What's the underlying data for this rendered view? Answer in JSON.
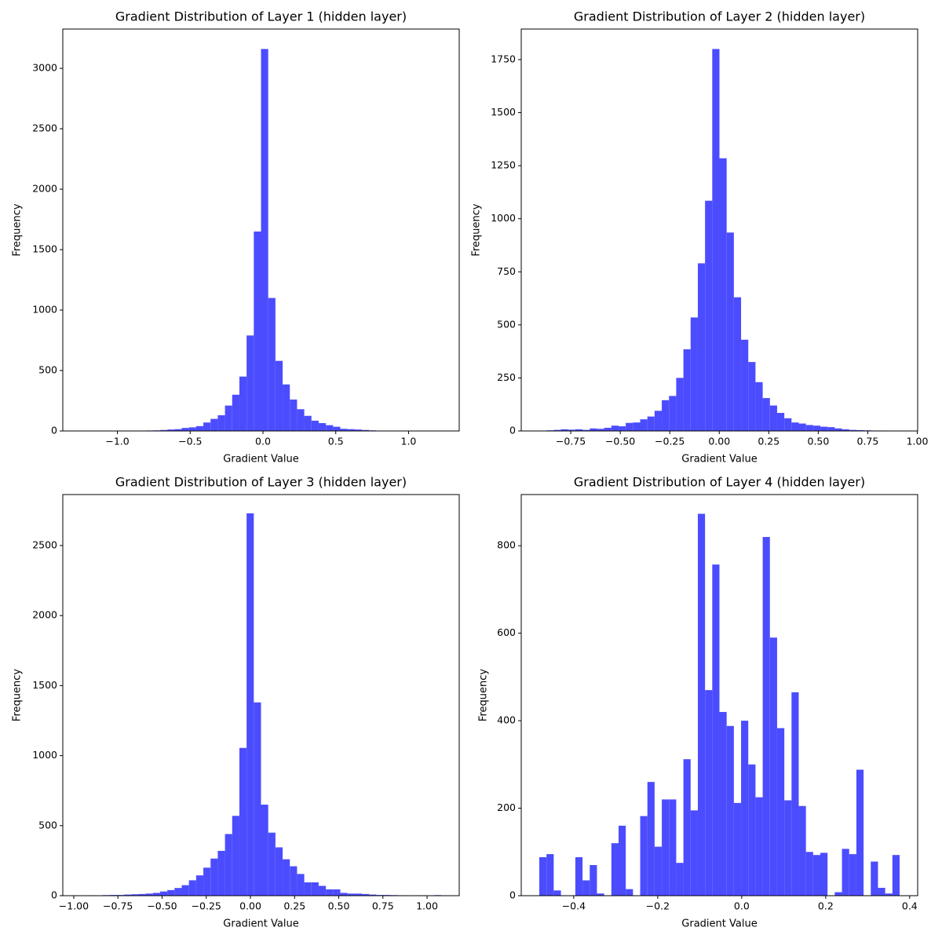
{
  "chart_data": [
    {
      "type": "histogram",
      "title": "Gradient Distribution of Layer 1 (hidden layer)",
      "xlabel": "Gradient Value",
      "ylabel": "Frequency",
      "color": "#4c4cff",
      "bins": [
        -1.251,
        -1.2015,
        -1.152,
        -1.1025,
        -1.053,
        -1.0035,
        -0.954,
        -0.9045,
        -0.855,
        -0.8055,
        -0.756,
        -0.7065,
        -0.657,
        -0.6075,
        -0.558,
        -0.5085,
        -0.459,
        -0.4095,
        -0.36,
        -0.3105,
        -0.261,
        -0.2115,
        -0.162,
        -0.1125,
        -0.063,
        -0.0135,
        0.036,
        0.0855,
        0.135,
        0.1845,
        0.234,
        0.2835,
        0.333,
        0.3825,
        0.432,
        0.4815,
        0.531,
        0.5805,
        0.63,
        0.6795,
        0.729,
        0.7785,
        0.828,
        0.8775,
        0.927,
        0.9765,
        1.026,
        1.0755,
        1.125,
        1.1745,
        1.224
      ],
      "values": [
        1,
        0,
        0,
        0,
        0,
        0,
        0,
        1,
        2,
        4,
        5,
        8,
        12,
        15,
        25,
        30,
        40,
        70,
        100,
        130,
        210,
        300,
        450,
        790,
        1650,
        3160,
        1100,
        580,
        385,
        260,
        180,
        125,
        85,
        65,
        48,
        35,
        18,
        15,
        12,
        8,
        5,
        3,
        1,
        1,
        0,
        0,
        0,
        0,
        0,
        1
      ],
      "xlim": [
        -1.375,
        1.348
      ],
      "ylim": [
        0,
        3325
      ],
      "xticks": [
        {
          "value": -1.0,
          "label": "−1.0"
        },
        {
          "value": -0.5,
          "label": "−0.5"
        },
        {
          "value": 0,
          "label": "0.0"
        },
        {
          "value": 0.5,
          "label": "0.5"
        },
        {
          "value": 1.0,
          "label": "1.0"
        }
      ],
      "yticks": [
        0,
        500,
        1000,
        1500,
        2000,
        2500,
        3000
      ]
    },
    {
      "type": "histogram",
      "title": "Gradient Distribution of Layer 2 (hidden layer)",
      "xlabel": "Gradient Value",
      "ylabel": "Frequency",
      "color": "#4c4cff",
      "bins": [
        -0.909,
        -0.8726,
        -0.8362,
        -0.7998,
        -0.7634,
        -0.727,
        -0.6906,
        -0.6542,
        -0.6178,
        -0.5814,
        -0.545,
        -0.5086,
        -0.4722,
        -0.4358,
        -0.3994,
        -0.363,
        -0.3266,
        -0.2902,
        -0.2538,
        -0.2174,
        -0.181,
        -0.1446,
        -0.1082,
        -0.0718,
        -0.0354,
        0.001,
        0.0374,
        0.0738,
        0.1102,
        0.1466,
        0.183,
        0.2194,
        0.2558,
        0.2922,
        0.3286,
        0.365,
        0.4014,
        0.4378,
        0.4742,
        0.5106,
        0.547,
        0.5834,
        0.6198,
        0.6562,
        0.6926,
        0.729,
        0.7654,
        0.8018,
        0.8382,
        0.8746,
        0.911
      ],
      "values": [
        1,
        3,
        5,
        8,
        6,
        8,
        5,
        12,
        10,
        15,
        25,
        22,
        38,
        40,
        55,
        68,
        95,
        145,
        165,
        250,
        385,
        535,
        790,
        1085,
        1800,
        1285,
        935,
        630,
        430,
        325,
        230,
        155,
        120,
        85,
        60,
        40,
        35,
        28,
        25,
        20,
        18,
        12,
        8,
        5,
        4,
        3,
        2,
        2,
        1,
        1
      ],
      "xlim": [
        -1.0,
        1.002
      ],
      "ylim": [
        0,
        1894
      ],
      "xticks": [
        {
          "value": -0.75,
          "label": "−0.75"
        },
        {
          "value": -0.5,
          "label": "−0.50"
        },
        {
          "value": -0.25,
          "label": "−0.25"
        },
        {
          "value": 0,
          "label": "0.00"
        },
        {
          "value": 0.25,
          "label": "0.25"
        },
        {
          "value": 0.5,
          "label": "0.50"
        },
        {
          "value": 0.75,
          "label": "0.75"
        },
        {
          "value": 1.0,
          "label": "1.00"
        }
      ],
      "yticks": [
        0,
        250,
        500,
        750,
        1000,
        1250,
        1500,
        1750
      ]
    },
    {
      "type": "histogram",
      "title": "Gradient Distribution of Layer 3 (hidden layer)",
      "xlabel": "Gradient Value",
      "ylabel": "Frequency",
      "color": "#4c4cff",
      "bins": [
        -0.96,
        -0.9192,
        -0.8784,
        -0.8376,
        -0.7968,
        -0.756,
        -0.7152,
        -0.6744,
        -0.6336,
        -0.5928,
        -0.552,
        -0.5112,
        -0.4704,
        -0.4296,
        -0.3888,
        -0.348,
        -0.3072,
        -0.2664,
        -0.2256,
        -0.1848,
        -0.144,
        -0.1032,
        -0.0624,
        -0.0216,
        0.0192,
        0.06,
        0.1008,
        0.1416,
        0.1824,
        0.2232,
        0.264,
        0.3048,
        0.3456,
        0.3864,
        0.4272,
        0.468,
        0.5088,
        0.5496,
        0.5904,
        0.6312,
        0.672,
        0.7128,
        0.7536,
        0.7944,
        0.8352,
        0.876,
        0.9168,
        0.9576,
        0.9984,
        1.0392,
        1.08
      ],
      "values": [
        2,
        3,
        2,
        4,
        5,
        5,
        8,
        10,
        12,
        15,
        20,
        30,
        40,
        55,
        75,
        110,
        145,
        200,
        265,
        320,
        440,
        570,
        1055,
        2730,
        1380,
        650,
        450,
        345,
        260,
        210,
        155,
        95,
        95,
        70,
        45,
        45,
        20,
        15,
        15,
        12,
        8,
        5,
        5,
        4,
        3,
        2,
        1,
        3,
        1,
        4
      ],
      "xlim": [
        -1.062,
        1.182
      ],
      "ylim": [
        0,
        2864
      ],
      "xticks": [
        {
          "value": -1.0,
          "label": "−1.00"
        },
        {
          "value": -0.75,
          "label": "−0.75"
        },
        {
          "value": -0.5,
          "label": "−0.50"
        },
        {
          "value": -0.25,
          "label": "−0.25"
        },
        {
          "value": 0,
          "label": "0.00"
        },
        {
          "value": 0.25,
          "label": "0.25"
        },
        {
          "value": 0.5,
          "label": "0.50"
        },
        {
          "value": 0.75,
          "label": "0.75"
        },
        {
          "value": 1.0,
          "label": "1.00"
        }
      ],
      "yticks": [
        0,
        500,
        1000,
        1500,
        2000,
        2500
      ]
    },
    {
      "type": "histogram",
      "title": "Gradient Distribution of Layer 4 (hidden layer)",
      "xlabel": "Gradient Value",
      "ylabel": "Frequency",
      "color": "#4c4cff",
      "bins": [
        -0.482,
        -0.46484,
        -0.44768,
        -0.43052,
        -0.41336,
        -0.3962,
        -0.37904,
        -0.36188,
        -0.34472,
        -0.32756,
        -0.3104,
        -0.29324,
        -0.27608,
        -0.25892,
        -0.24176,
        -0.2246,
        -0.20744,
        -0.19028,
        -0.17312,
        -0.15596,
        -0.1388,
        -0.12164,
        -0.10448,
        -0.08732,
        -0.07016,
        -0.053,
        -0.03584,
        -0.01868,
        -0.00152,
        0.01564,
        0.0328,
        0.04996,
        0.06712,
        0.08428,
        0.10144,
        0.1186,
        0.13576,
        0.15292,
        0.17008,
        0.18724,
        0.2044,
        0.22156,
        0.23872,
        0.25588,
        0.27304,
        0.2902,
        0.30736,
        0.32452,
        0.34168,
        0.35884,
        0.376
      ],
      "values": [
        88,
        95,
        12,
        0,
        0,
        88,
        35,
        70,
        5,
        0,
        120,
        160,
        15,
        0,
        182,
        260,
        112,
        220,
        220,
        75,
        312,
        195,
        873,
        470,
        757,
        420,
        388,
        212,
        400,
        300,
        225,
        820,
        590,
        383,
        218,
        465,
        205,
        100,
        93,
        98,
        0,
        8,
        107,
        95,
        288,
        0,
        78,
        18,
        5,
        93
      ],
      "xlim": [
        -0.525,
        0.419
      ],
      "ylim": [
        0,
        917
      ],
      "xticks": [
        {
          "value": -0.4,
          "label": "−0.4"
        },
        {
          "value": -0.2,
          "label": "−0.2"
        },
        {
          "value": 0,
          "label": "0.0"
        },
        {
          "value": 0.2,
          "label": "0.2"
        },
        {
          "value": 0.4,
          "label": "0.4"
        }
      ],
      "yticks": [
        0,
        200,
        400,
        600,
        800
      ]
    }
  ]
}
